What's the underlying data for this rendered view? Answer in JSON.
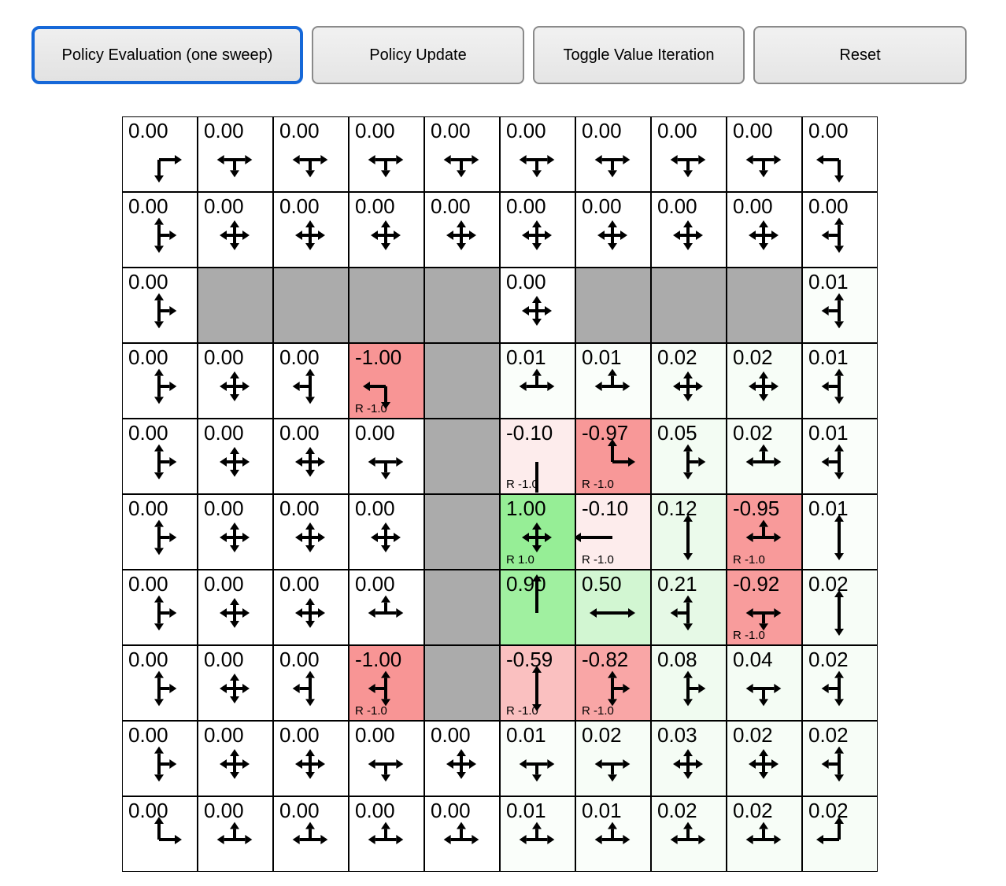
{
  "toolbar": {
    "buttons": [
      {
        "label": "Policy Evaluation (one sweep)",
        "active": true
      },
      {
        "label": "Policy Update",
        "active": false
      },
      {
        "label": "Toggle Value Iteration",
        "active": false
      },
      {
        "label": "Reset",
        "active": false
      }
    ],
    "active_border_color": "#1668D8"
  },
  "grid": {
    "rows": 10,
    "cols": 10,
    "wall_color": "#ABABAB",
    "border_color": "#000000",
    "positive_color": "#96EE96",
    "negative_color": "#F89595",
    "rows_data": [
      [
        {
          "v": "0.00",
          "d": "rd",
          "bg": "#FFFFFF"
        },
        {
          "v": "0.00",
          "d": "lrd",
          "bg": "#FFFFFF"
        },
        {
          "v": "0.00",
          "d": "lrd",
          "bg": "#FFFFFF"
        },
        {
          "v": "0.00",
          "d": "lrd",
          "bg": "#FFFFFF"
        },
        {
          "v": "0.00",
          "d": "lrd",
          "bg": "#FFFFFF"
        },
        {
          "v": "0.00",
          "d": "lrd",
          "bg": "#FFFFFF"
        },
        {
          "v": "0.00",
          "d": "lrd",
          "bg": "#FFFFFF"
        },
        {
          "v": "0.00",
          "d": "lrd",
          "bg": "#FFFFFF"
        },
        {
          "v": "0.00",
          "d": "lrd",
          "bg": "#FFFFFF"
        },
        {
          "v": "0.00",
          "d": "ld",
          "bg": "#FFFFFF"
        }
      ],
      [
        {
          "v": "0.00",
          "d": "udr",
          "bg": "#FFFFFF"
        },
        {
          "v": "0.00",
          "d": "udlr",
          "bg": "#FFFFFF"
        },
        {
          "v": "0.00",
          "d": "udlr",
          "bg": "#FFFFFF"
        },
        {
          "v": "0.00",
          "d": "udlr",
          "bg": "#FFFFFF"
        },
        {
          "v": "0.00",
          "d": "udlr",
          "bg": "#FFFFFF"
        },
        {
          "v": "0.00",
          "d": "udlr",
          "bg": "#FFFFFF"
        },
        {
          "v": "0.00",
          "d": "udlr",
          "bg": "#FFFFFF"
        },
        {
          "v": "0.00",
          "d": "udlr",
          "bg": "#FFFFFF"
        },
        {
          "v": "0.00",
          "d": "udlr",
          "bg": "#FFFFFF"
        },
        {
          "v": "0.00",
          "d": "udl",
          "bg": "#FFFFFF"
        }
      ],
      [
        {
          "v": "0.00",
          "d": "udr",
          "bg": "#FFFFFF"
        },
        "W",
        "W",
        "W",
        "W",
        {
          "v": "0.00",
          "d": "udlr",
          "bg": "#FFFFFF"
        },
        "W",
        "W",
        "W",
        {
          "v": "0.01",
          "d": "udl",
          "bg": "#FAFEFA"
        }
      ],
      [
        {
          "v": "0.00",
          "d": "udr",
          "bg": "#FFFFFF"
        },
        {
          "v": "0.00",
          "d": "udlr",
          "bg": "#FFFFFF"
        },
        {
          "v": "0.00",
          "d": "udl",
          "bg": "#FFFFFF"
        },
        {
          "v": "-1.00",
          "d": "ld",
          "bg": "#F89595",
          "r": "R -1.0"
        },
        "W",
        {
          "v": "0.01",
          "d": "ulr",
          "bg": "#FAFEFA"
        },
        {
          "v": "0.01",
          "d": "ulr",
          "bg": "#FAFEFA"
        },
        {
          "v": "0.02",
          "d": "udlr",
          "bg": "#F7FDF7"
        },
        {
          "v": "0.02",
          "d": "udlr",
          "bg": "#F7FDF7"
        },
        {
          "v": "0.01",
          "d": "udl",
          "bg": "#FAFEFA"
        }
      ],
      [
        {
          "v": "0.00",
          "d": "udr",
          "bg": "#FFFFFF"
        },
        {
          "v": "0.00",
          "d": "udlr",
          "bg": "#FFFFFF"
        },
        {
          "v": "0.00",
          "d": "udlr",
          "bg": "#FFFFFF"
        },
        {
          "v": "0.00",
          "d": "lrd",
          "bg": "#FFFFFF"
        },
        "W",
        {
          "v": "-0.10",
          "d": "d",
          "bg": "#FDECEC",
          "r": "R -1.0"
        },
        {
          "v": "-0.97",
          "d": "ur",
          "bg": "#F89898",
          "r": "R -1.0"
        },
        {
          "v": "0.05",
          "d": "udr",
          "bg": "#F3FCF3"
        },
        {
          "v": "0.02",
          "d": "ulr",
          "bg": "#F7FDF7"
        },
        {
          "v": "0.01",
          "d": "udl",
          "bg": "#FAFEFA"
        }
      ],
      [
        {
          "v": "0.00",
          "d": "udr",
          "bg": "#FFFFFF"
        },
        {
          "v": "0.00",
          "d": "udlr",
          "bg": "#FFFFFF"
        },
        {
          "v": "0.00",
          "d": "udlr",
          "bg": "#FFFFFF"
        },
        {
          "v": "0.00",
          "d": "udlr",
          "bg": "#FFFFFF"
        },
        "W",
        {
          "v": "1.00",
          "d": "udlr",
          "bg": "#96EE96",
          "r": "R 1.0"
        },
        {
          "v": "-0.10",
          "d": "l",
          "bg": "#FDECEC",
          "r": "R -1.0"
        },
        {
          "v": "0.12",
          "d": "ud",
          "bg": "#EBFAEB"
        },
        {
          "v": "-0.95",
          "d": "ulr",
          "bg": "#F89A9A",
          "r": "R -1.0"
        },
        {
          "v": "0.01",
          "d": "ud",
          "bg": "#FAFEFA"
        }
      ],
      [
        {
          "v": "0.00",
          "d": "udr",
          "bg": "#FFFFFF"
        },
        {
          "v": "0.00",
          "d": "udlr",
          "bg": "#FFFFFF"
        },
        {
          "v": "0.00",
          "d": "udlr",
          "bg": "#FFFFFF"
        },
        {
          "v": "0.00",
          "d": "ulr",
          "bg": "#FFFFFF"
        },
        "W",
        {
          "v": "0.90",
          "d": "u",
          "bg": "#A0F0A0"
        },
        {
          "v": "0.50",
          "d": "lr",
          "bg": "#D2F6D2"
        },
        {
          "v": "0.21",
          "d": "udl",
          "bg": "#E6F9E6"
        },
        {
          "v": "-0.92",
          "d": "lrd",
          "bg": "#F89C9C",
          "r": "R -1.0"
        },
        {
          "v": "0.02",
          "d": "ud",
          "bg": "#F7FDF7"
        }
      ],
      [
        {
          "v": "0.00",
          "d": "udr",
          "bg": "#FFFFFF"
        },
        {
          "v": "0.00",
          "d": "udlr",
          "bg": "#FFFFFF"
        },
        {
          "v": "0.00",
          "d": "udl",
          "bg": "#FFFFFF"
        },
        {
          "v": "-1.00",
          "d": "udl",
          "bg": "#F89595",
          "r": "R -1.0"
        },
        "W",
        {
          "v": "-0.59",
          "d": "ud",
          "bg": "#FAC0C0",
          "r": "R -1.0"
        },
        {
          "v": "-0.82",
          "d": "udr",
          "bg": "#F9A6A6",
          "r": "R -1.0"
        },
        {
          "v": "0.08",
          "d": "udr",
          "bg": "#F0FBF0"
        },
        {
          "v": "0.04",
          "d": "lrd",
          "bg": "#F4FCF4"
        },
        {
          "v": "0.02",
          "d": "udl",
          "bg": "#F7FDF7"
        }
      ],
      [
        {
          "v": "0.00",
          "d": "udr",
          "bg": "#FFFFFF"
        },
        {
          "v": "0.00",
          "d": "udlr",
          "bg": "#FFFFFF"
        },
        {
          "v": "0.00",
          "d": "udlr",
          "bg": "#FFFFFF"
        },
        {
          "v": "0.00",
          "d": "lrd",
          "bg": "#FFFFFF"
        },
        {
          "v": "0.00",
          "d": "udlr",
          "bg": "#FFFFFF"
        },
        {
          "v": "0.01",
          "d": "lrd",
          "bg": "#FAFEFA"
        },
        {
          "v": "0.02",
          "d": "lrd",
          "bg": "#F7FDF7"
        },
        {
          "v": "0.03",
          "d": "udlr",
          "bg": "#F5FCF5"
        },
        {
          "v": "0.02",
          "d": "udlr",
          "bg": "#F7FDF7"
        },
        {
          "v": "0.02",
          "d": "udl",
          "bg": "#F7FDF7"
        }
      ],
      [
        {
          "v": "0.00",
          "d": "ur",
          "bg": "#FFFFFF"
        },
        {
          "v": "0.00",
          "d": "ulr",
          "bg": "#FFFFFF"
        },
        {
          "v": "0.00",
          "d": "ulr",
          "bg": "#FFFFFF"
        },
        {
          "v": "0.00",
          "d": "ulr",
          "bg": "#FFFFFF"
        },
        {
          "v": "0.00",
          "d": "ulr",
          "bg": "#FFFFFF"
        },
        {
          "v": "0.01",
          "d": "ulr",
          "bg": "#FAFEFA"
        },
        {
          "v": "0.01",
          "d": "ulr",
          "bg": "#FAFEFA"
        },
        {
          "v": "0.02",
          "d": "ulr",
          "bg": "#F7FDF7"
        },
        {
          "v": "0.02",
          "d": "ulr",
          "bg": "#F7FDF7"
        },
        {
          "v": "0.02",
          "d": "ul",
          "bg": "#F7FDF7"
        }
      ]
    ]
  }
}
